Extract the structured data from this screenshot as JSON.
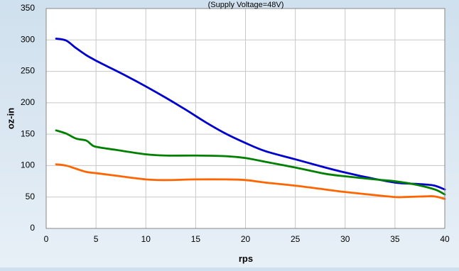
{
  "chart_data": {
    "type": "line",
    "title": "(Supply Voltage=48V)",
    "xlabel": "rps",
    "ylabel": "oz-in",
    "xlim": [
      0,
      40
    ],
    "ylim": [
      0,
      350
    ],
    "xticks": [
      0,
      5,
      10,
      15,
      20,
      25,
      30,
      35,
      40
    ],
    "yticks": [
      0,
      50,
      100,
      150,
      200,
      250,
      300,
      350
    ],
    "grid": true,
    "legend": "none",
    "series": [
      {
        "color": "#0000cc",
        "points": [
          [
            1,
            302
          ],
          [
            2,
            299
          ],
          [
            3,
            287
          ],
          [
            4,
            276
          ],
          [
            5,
            267
          ],
          [
            6,
            259
          ],
          [
            8,
            243
          ],
          [
            10,
            226
          ],
          [
            12,
            208
          ],
          [
            14,
            189
          ],
          [
            16,
            169
          ],
          [
            18,
            151
          ],
          [
            20,
            136
          ],
          [
            22,
            123
          ],
          [
            25,
            110
          ],
          [
            28,
            97
          ],
          [
            30,
            89
          ],
          [
            32,
            82
          ],
          [
            35,
            73
          ],
          [
            37,
            71
          ],
          [
            38,
            70
          ],
          [
            39,
            68
          ],
          [
            40,
            62
          ]
        ]
      },
      {
        "color": "#008000",
        "points": [
          [
            1,
            156
          ],
          [
            2,
            151
          ],
          [
            3,
            143
          ],
          [
            4,
            140
          ],
          [
            4.5,
            134
          ],
          [
            5,
            130
          ],
          [
            7,
            125
          ],
          [
            10,
            118
          ],
          [
            12,
            116
          ],
          [
            15,
            116
          ],
          [
            18,
            115
          ],
          [
            20,
            112
          ],
          [
            22,
            106
          ],
          [
            25,
            97
          ],
          [
            28,
            87
          ],
          [
            30,
            83
          ],
          [
            33,
            78
          ],
          [
            35,
            75
          ],
          [
            37,
            70
          ],
          [
            39,
            62
          ],
          [
            40,
            54
          ]
        ]
      },
      {
        "color": "#ff6600",
        "points": [
          [
            1,
            102
          ],
          [
            2,
            100
          ],
          [
            3,
            95
          ],
          [
            4,
            90
          ],
          [
            5,
            88
          ],
          [
            7,
            84
          ],
          [
            10,
            78
          ],
          [
            12,
            77
          ],
          [
            15,
            78
          ],
          [
            18,
            78
          ],
          [
            20,
            77
          ],
          [
            22,
            73
          ],
          [
            25,
            68
          ],
          [
            28,
            62
          ],
          [
            30,
            58
          ],
          [
            33,
            53
          ],
          [
            35,
            50
          ],
          [
            36,
            50
          ],
          [
            38,
            51
          ],
          [
            39,
            51
          ],
          [
            40,
            47
          ]
        ]
      }
    ]
  }
}
